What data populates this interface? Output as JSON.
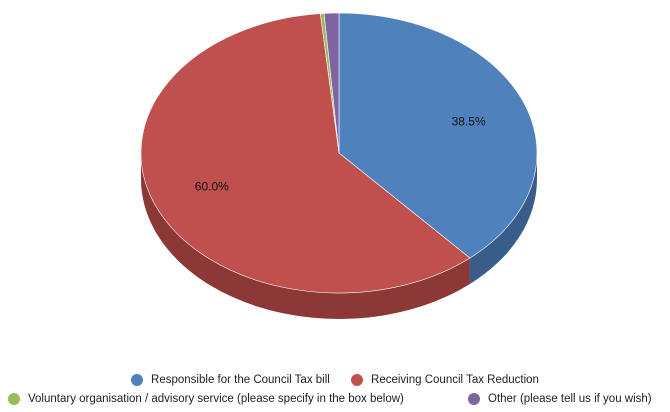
{
  "chart_data": {
    "type": "pie",
    "categories": [
      "Responsible for the Council Tax bill",
      "Receiving Council Tax Reduction",
      "Voluntary organisation / advisory service (please specify in the box below)",
      "Other (please tell us if you wish)"
    ],
    "values": [
      38.5,
      60.0,
      0.3,
      1.2
    ],
    "data_labels": [
      "38.5%",
      "60.0%",
      "",
      ""
    ],
    "colors": [
      "#4f81bd",
      "#c0504d",
      "#9bbb59",
      "#8064a2"
    ],
    "side_colors": [
      "#385d8a",
      "#8c3836",
      "#71893f",
      "#5c4776"
    ],
    "style": "3d",
    "legend_position": "bottom"
  }
}
